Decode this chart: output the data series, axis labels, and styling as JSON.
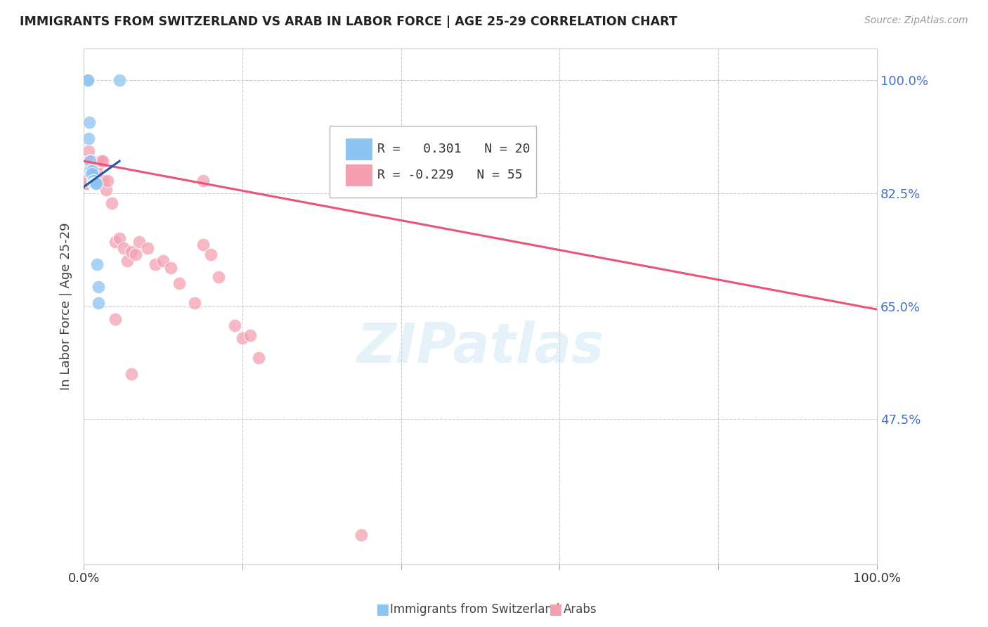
{
  "title": "IMMIGRANTS FROM SWITZERLAND VS ARAB IN LABOR FORCE | AGE 25-29 CORRELATION CHART",
  "source": "Source: ZipAtlas.com",
  "ylabel": "In Labor Force | Age 25-29",
  "xlim": [
    0.0,
    1.0
  ],
  "ylim": [
    0.25,
    1.05
  ],
  "yticks": [
    0.475,
    0.65,
    0.825,
    1.0
  ],
  "ytick_labels": [
    "47.5%",
    "65.0%",
    "82.5%",
    "100.0%"
  ],
  "xticks": [
    0.0,
    0.2,
    0.4,
    0.6,
    0.8,
    1.0
  ],
  "xtick_labels": [
    "0.0%",
    "",
    "",
    "",
    "",
    "100.0%"
  ],
  "R_blue": 0.301,
  "N_blue": 20,
  "R_pink": -0.229,
  "N_pink": 55,
  "blue_color": "#8EC4F0",
  "pink_color": "#F4A0B0",
  "trend_blue_color": "#2255AA",
  "trend_pink_color": "#E8547A",
  "axis_label_color": "#4472C4",
  "background_color": "#FFFFFF",
  "swiss_x": [
    0.004,
    0.005,
    0.006,
    0.007,
    0.008,
    0.008,
    0.009,
    0.01,
    0.01,
    0.011,
    0.012,
    0.012,
    0.013,
    0.014,
    0.015,
    0.016,
    0.017,
    0.018,
    0.018,
    0.045
  ],
  "swiss_y": [
    1.0,
    1.0,
    0.91,
    0.935,
    0.875,
    0.86,
    0.855,
    0.86,
    0.855,
    0.845,
    0.845,
    0.84,
    0.84,
    0.84,
    0.84,
    0.84,
    0.715,
    0.68,
    0.655,
    1.0
  ],
  "arab_x": [
    0.004,
    0.005,
    0.006,
    0.007,
    0.007,
    0.008,
    0.008,
    0.009,
    0.009,
    0.01,
    0.01,
    0.011,
    0.011,
    0.012,
    0.012,
    0.013,
    0.013,
    0.014,
    0.015,
    0.016,
    0.018,
    0.02,
    0.022,
    0.024,
    0.025,
    0.028,
    0.03,
    0.035,
    0.04,
    0.045,
    0.05,
    0.055,
    0.06,
    0.065,
    0.07,
    0.08,
    0.09,
    0.1,
    0.11,
    0.12,
    0.14,
    0.15,
    0.16,
    0.17,
    0.19,
    0.2,
    0.21,
    0.15,
    0.22,
    0.35,
    0.04,
    0.06,
    0.003,
    0.003,
    0.003
  ],
  "arab_y": [
    0.875,
    0.875,
    0.89,
    0.875,
    0.865,
    0.875,
    0.865,
    0.865,
    0.86,
    0.875,
    0.865,
    0.86,
    0.87,
    0.86,
    0.865,
    0.86,
    0.865,
    0.86,
    0.86,
    0.86,
    0.87,
    0.875,
    0.875,
    0.875,
    0.845,
    0.83,
    0.845,
    0.81,
    0.75,
    0.755,
    0.74,
    0.72,
    0.735,
    0.73,
    0.75,
    0.74,
    0.715,
    0.72,
    0.71,
    0.685,
    0.655,
    0.745,
    0.73,
    0.695,
    0.62,
    0.6,
    0.605,
    0.845,
    0.57,
    0.295,
    0.63,
    0.545,
    0.84,
    0.84,
    0.845
  ],
  "trend_pink_x_start": 0.0,
  "trend_pink_x_end": 1.0,
  "trend_pink_y_start": 0.875,
  "trend_pink_y_end": 0.645,
  "trend_blue_x_start": 0.0,
  "trend_blue_x_end": 0.045,
  "trend_blue_y_start": 0.835,
  "trend_blue_y_end": 0.875,
  "trend_blue_dash_x_start": 0.0,
  "trend_blue_dash_x_end": 0.004,
  "trend_blue_dash_y_start": 0.835,
  "trend_blue_dash_y_end": 0.837
}
